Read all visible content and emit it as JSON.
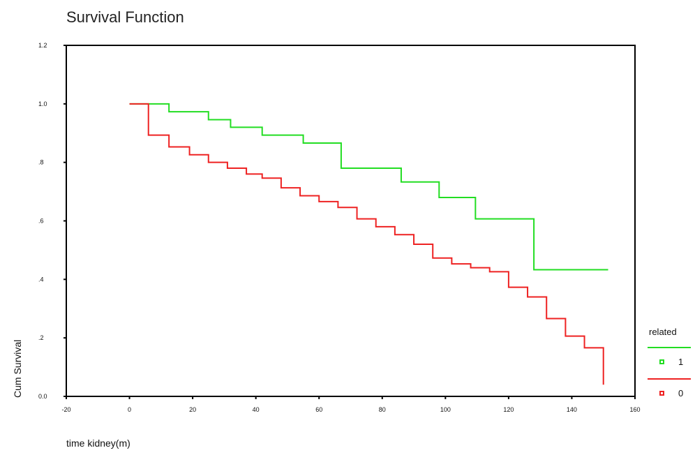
{
  "chart_data": {
    "type": "line",
    "title": "Survival Function",
    "xlabel": "time kidney(m)",
    "ylabel": "Cum Survival",
    "xlim": [
      -20,
      160
    ],
    "ylim": [
      0.0,
      1.2
    ],
    "x_ticks": [
      -20,
      0,
      20,
      40,
      60,
      80,
      100,
      120,
      140,
      160
    ],
    "x_tick_labels": [
      "-20",
      "0",
      "20",
      "40",
      "60",
      "80",
      "100",
      "120",
      "140",
      "160"
    ],
    "y_ticks": [
      1.2,
      1.0,
      0.8,
      0.6,
      0.4,
      0.2,
      0.0
    ],
    "y_tick_labels": [
      "1.2",
      "1.0",
      ".8",
      ".6",
      ".4",
      ".2",
      "0.0"
    ],
    "grid": false,
    "legend": {
      "title": "related",
      "placement": "right"
    },
    "series": [
      {
        "name": "1",
        "color": "#22dd22",
        "steps": [
          [
            0,
            1.0
          ],
          [
            12.5,
            0.973
          ],
          [
            25,
            0.946
          ],
          [
            32,
            0.92
          ],
          [
            42,
            0.893
          ],
          [
            55,
            0.866
          ],
          [
            67,
            0.78
          ],
          [
            86,
            0.733
          ],
          [
            98,
            0.68
          ],
          [
            109.5,
            0.607
          ],
          [
            128,
            0.433
          ],
          [
            151.5,
            0.433
          ]
        ]
      },
      {
        "name": "0",
        "color": "#ee2222",
        "steps": [
          [
            0,
            1.0
          ],
          [
            6,
            0.893
          ],
          [
            12.5,
            0.853
          ],
          [
            19,
            0.826
          ],
          [
            25,
            0.8
          ],
          [
            31,
            0.78
          ],
          [
            37,
            0.76
          ],
          [
            42,
            0.746
          ],
          [
            48,
            0.713
          ],
          [
            54,
            0.686
          ],
          [
            60,
            0.666
          ],
          [
            66,
            0.646
          ],
          [
            72,
            0.607
          ],
          [
            78,
            0.58
          ],
          [
            84,
            0.553
          ],
          [
            90,
            0.52
          ],
          [
            96,
            0.473
          ],
          [
            102,
            0.453
          ],
          [
            108,
            0.44
          ],
          [
            114,
            0.426
          ],
          [
            120,
            0.373
          ],
          [
            126,
            0.34
          ],
          [
            132,
            0.266
          ],
          [
            138,
            0.206
          ],
          [
            144,
            0.166
          ],
          [
            150,
            0.166
          ],
          [
            150,
            0.04
          ]
        ]
      }
    ]
  }
}
